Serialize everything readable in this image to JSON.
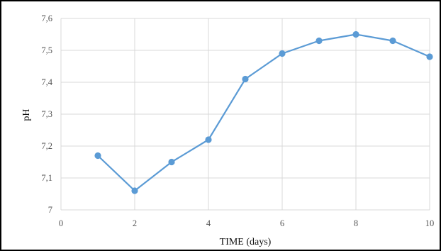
{
  "chart_data": {
    "type": "line",
    "title": "",
    "xlabel": "TIME (days)",
    "ylabel": "pH",
    "xlim": [
      0,
      10
    ],
    "ylim": [
      7,
      7.6
    ],
    "xticks": [
      0,
      2,
      4,
      6,
      8,
      10
    ],
    "xtick_labels": [
      "0",
      "2",
      "4",
      "6",
      "8",
      "10"
    ],
    "yticks": [
      7,
      7.1,
      7.2,
      7.3,
      7.4,
      7.5,
      7.6
    ],
    "ytick_labels": [
      "7",
      "7,1",
      "7,2",
      "7,3",
      "7,4",
      "7,5",
      "7,6"
    ],
    "grid": true,
    "legend": false,
    "series": [
      {
        "color": "#5b9bd5",
        "x": [
          1,
          2,
          3,
          4,
          5,
          6,
          7,
          8,
          9,
          10
        ],
        "y": [
          7.17,
          7.06,
          7.15,
          7.22,
          7.41,
          7.49,
          7.53,
          7.55,
          7.53,
          7.48
        ]
      }
    ]
  }
}
